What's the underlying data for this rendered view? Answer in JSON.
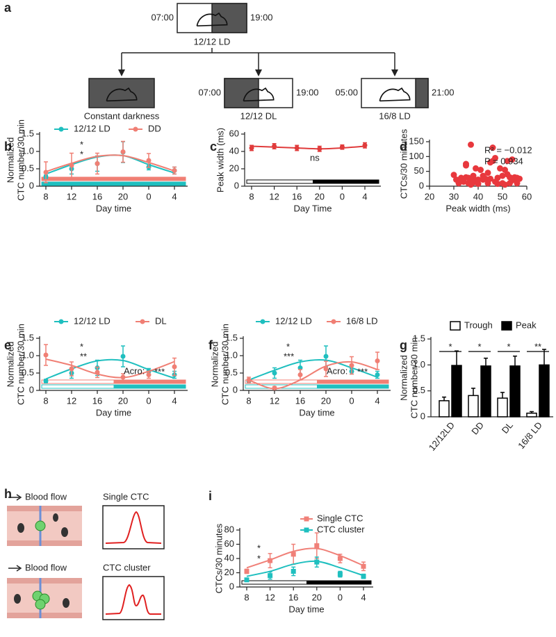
{
  "panel_a": {
    "panel": "a",
    "top_left": "07:00",
    "top_right": "19:00",
    "top_label": "12/12 LD",
    "branches": [
      {
        "label": "Constant darkness"
      },
      {
        "left": "07:00",
        "right": "19:00",
        "label": "12/12 DL"
      },
      {
        "left": "05:00",
        "right": "21:00",
        "label": "16/8 LD"
      }
    ]
  },
  "panel_h": {
    "panel": "h",
    "rows": [
      {
        "flow": "Blood flow",
        "signal": "Single CTC"
      },
      {
        "flow": "Blood flow",
        "signal": "CTC cluster"
      }
    ]
  },
  "chart_data": [
    {
      "panel": "b",
      "type": "line",
      "xlabel": "Day time",
      "ylabel": [
        "Normalized",
        "CTC number/30 min"
      ],
      "categories": [
        "8",
        "12",
        "16",
        "20",
        "0",
        "4"
      ],
      "ylim": [
        0,
        1.5
      ],
      "yticks": [
        0,
        0.5,
        {
          "value": 1,
          "label": "1.0"
        },
        1.5
      ],
      "legend": "top",
      "series": [
        {
          "name": "12/12 LD",
          "color": "#1fbfbf",
          "values": [
            0.27,
            0.5,
            0.65,
            0.98,
            0.55,
            0.45
          ],
          "errors": [
            0.05,
            0.15,
            0.22,
            0.3,
            0.08,
            0.1
          ],
          "fit": [
            0.35,
            0.62,
            0.84,
            0.88,
            0.62,
            0.38
          ]
        },
        {
          "name": "DD",
          "color": "#f07f74",
          "values": [
            0.4,
            0.6,
            0.65,
            0.99,
            0.74,
            0.45
          ],
          "errors": [
            0.3,
            0.35,
            0.3,
            0.3,
            0.2,
            0.1
          ],
          "fit": [
            0.42,
            0.66,
            0.86,
            0.88,
            0.68,
            0.44
          ]
        }
      ],
      "annotations": [
        {
          "text": "*",
          "color": "#1fbfbf"
        },
        {
          "text": "*",
          "color": "#f07f74"
        }
      ]
    },
    {
      "panel": "c",
      "type": "line",
      "xlabel": "Day Time",
      "ylabel": [
        "Peak width (ms)"
      ],
      "categories": [
        "8",
        "12",
        "16",
        "20",
        "0",
        "4"
      ],
      "ylim": [
        0,
        60
      ],
      "yticks": [
        0,
        20,
        40,
        60
      ],
      "series": [
        {
          "color": "#e03b3b",
          "values": [
            44,
            46,
            44,
            43,
            45,
            47
          ],
          "errors": [
            3,
            3,
            3,
            3,
            2.5,
            3
          ],
          "fit": [
            46,
            45,
            44,
            43,
            44,
            46
          ]
        }
      ],
      "annotations": [
        {
          "text": "ns",
          "color": "#e03b3b"
        }
      ]
    },
    {
      "panel": "d",
      "type": "scatter",
      "xlabel": "Peak width (ms)",
      "ylabel": [
        "CTCs/30 minutes"
      ],
      "color": "#e8383d",
      "xlim": [
        20,
        60
      ],
      "xticks": [
        20,
        30,
        40,
        50,
        60
      ],
      "ylim": [
        0,
        150
      ],
      "yticks": [
        0,
        50,
        100,
        150
      ],
      "x": [
        30,
        31,
        32,
        33,
        33,
        34,
        35,
        35,
        35,
        36,
        36,
        37,
        37,
        37,
        38,
        38,
        39,
        39,
        40,
        40,
        41,
        42,
        42,
        43,
        44,
        44,
        45,
        45,
        46,
        46,
        47,
        47,
        48,
        48,
        49,
        50,
        50,
        51,
        51,
        52,
        52,
        53,
        53,
        54,
        54,
        55,
        55,
        56,
        56,
        57
      ],
      "values": [
        38,
        22,
        10,
        28,
        22,
        15,
        70,
        75,
        30,
        10,
        28,
        5,
        20,
        140,
        35,
        12,
        20,
        60,
        22,
        8,
        55,
        35,
        22,
        25,
        45,
        10,
        80,
        25,
        85,
        130,
        15,
        95,
        28,
        8,
        60,
        35,
        10,
        5,
        55,
        40,
        85,
        10,
        30,
        90,
        20,
        25,
        30,
        28,
        10,
        25
      ],
      "annotations": [
        {
          "text": "R² = −0.012",
          "color": "#222"
        },
        {
          "text": "P = 0.934",
          "color": "#222"
        }
      ]
    },
    {
      "panel": "e",
      "type": "line",
      "xlabel": "Day time",
      "ylabel": [
        "Normalized",
        "CTC number/30 min"
      ],
      "categories": [
        "8",
        "12",
        "16",
        "20",
        "0",
        "4"
      ],
      "ylim": [
        0,
        1.5
      ],
      "yticks": [
        0,
        0.5,
        {
          "value": 1,
          "label": "1.0"
        },
        1.5
      ],
      "legend": "top",
      "series": [
        {
          "name": "12/12 LD",
          "color": "#1fbfbf",
          "values": [
            0.27,
            0.5,
            0.65,
            0.98,
            0.55,
            0.45
          ],
          "errors": [
            0.05,
            0.15,
            0.22,
            0.3,
            0.08,
            0.1
          ],
          "fit": [
            0.33,
            0.62,
            0.85,
            0.86,
            0.6,
            0.35
          ]
        },
        {
          "name": "DL",
          "color": "#f07f74",
          "values": [
            1.02,
            0.62,
            0.52,
            0.38,
            0.45,
            0.68
          ],
          "errors": [
            0.3,
            0.2,
            0.15,
            0.1,
            0.1,
            0.25
          ],
          "fit": [
            0.9,
            0.72,
            0.47,
            0.37,
            0.55,
            0.83
          ]
        }
      ],
      "annotations": [
        {
          "text": "*",
          "color": "#1fbfbf"
        },
        {
          "text": "**",
          "color": "#f07f74"
        },
        {
          "text": "Acro:",
          "color": "#222"
        },
        {
          "text": "***",
          "color": "#222"
        }
      ]
    },
    {
      "panel": "f",
      "type": "line",
      "xlabel": "Day time",
      "ylabel": [
        "Normalized",
        "CTC number/30 min"
      ],
      "categories": [
        "8",
        "12",
        "16",
        "20",
        "0",
        "4"
      ],
      "ylim": [
        0,
        1.5
      ],
      "yticks": [
        0,
        0.5,
        {
          "value": 1,
          "label": "1.0"
        },
        1.5
      ],
      "legend": "top",
      "series": [
        {
          "name": "12/12 LD",
          "color": "#1fbfbf",
          "values": [
            0.27,
            0.5,
            0.65,
            0.98,
            0.55,
            0.45
          ],
          "errors": [
            0.05,
            0.15,
            0.22,
            0.3,
            0.08,
            0.1
          ],
          "fit": [
            0.3,
            0.58,
            0.82,
            0.87,
            0.65,
            0.38
          ]
        },
        {
          "name": "16/8 LD",
          "color": "#f07f74",
          "values": [
            0.3,
            0.07,
            0.45,
            0.62,
            0.72,
            0.85
          ],
          "errors": [
            0.08,
            0.04,
            0.15,
            0.22,
            0.25,
            0.25
          ],
          "fit": [
            0.3,
            0.05,
            0.3,
            0.7,
            0.82,
            0.6
          ]
        }
      ],
      "annotations": [
        {
          "text": "*",
          "color": "#1fbfbf"
        },
        {
          "text": "***",
          "color": "#f07f74"
        },
        {
          "text": "Acro:",
          "color": "#222"
        },
        {
          "text": "***",
          "color": "#222"
        }
      ]
    },
    {
      "panel": "g",
      "type": "bar",
      "ylabel": [
        "Normalized",
        "CTC number/30 min"
      ],
      "categories": [
        "12/12LD",
        "DD",
        "DL",
        "16/8 LD"
      ],
      "ylim": [
        0,
        1.5
      ],
      "yticks": [
        0,
        0.5,
        {
          "value": 1,
          "label": "1.0"
        },
        1.5
      ],
      "legend": "top",
      "series": [
        {
          "name": "Trough",
          "color": "#ffffff",
          "values": [
            0.31,
            0.41,
            0.36,
            0.07
          ],
          "errors": [
            0.07,
            0.14,
            0.11,
            0.03
          ]
        },
        {
          "name": "Peak",
          "color": "#000000",
          "values": [
            0.99,
            0.98,
            0.98,
            1.0
          ],
          "errors": [
            0.28,
            0.15,
            0.19,
            0.3
          ]
        }
      ],
      "significance": [
        "*",
        "*",
        "*",
        "**"
      ]
    },
    {
      "panel": "i",
      "type": "line",
      "xlabel": "Day time",
      "ylabel": [
        "CTCs/30 minutes"
      ],
      "marker": "square",
      "categories": [
        "8",
        "12",
        "16",
        "20",
        "0",
        "4"
      ],
      "ylim": [
        0,
        80
      ],
      "yticks": [
        0,
        20,
        40,
        60,
        80
      ],
      "legend": "top right",
      "series": [
        {
          "name": "Single CTC",
          "color": "#f08078",
          "values": [
            22,
            37,
            46,
            58,
            40,
            29
          ],
          "errors": [
            3,
            10,
            14,
            18,
            6,
            6
          ],
          "fit": [
            27,
            38,
            50,
            54,
            44,
            30
          ]
        },
        {
          "name": "CTC cluster",
          "color": "#1fbfbf",
          "values": [
            10,
            16,
            22,
            35,
            18,
            15
          ],
          "errors": [
            1,
            5,
            6,
            7,
            4,
            3
          ],
          "fit": [
            15,
            22,
            32,
            36,
            27,
            16
          ]
        }
      ],
      "annotations": [
        {
          "text": "*",
          "color": "#1fbfbf"
        },
        {
          "text": "*",
          "color": "#f08078"
        }
      ]
    }
  ]
}
